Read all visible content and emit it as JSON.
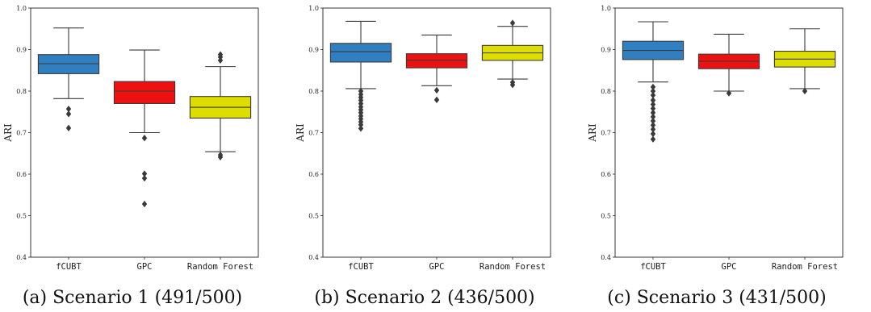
{
  "colors": {
    "fcubt": "#2f7fc1",
    "gpc": "#ee1111",
    "rf": "#dddd00"
  },
  "chart_data": [
    {
      "type": "box",
      "caption": "(a) Scenario 1 (491/500)",
      "ylabel": "ARI",
      "ylim": [
        0.4,
        1.0
      ],
      "yticks": [
        "0.4",
        "0.5",
        "0.6",
        "0.7",
        "0.8",
        "0.9",
        "1.0"
      ],
      "categories": [
        "fCUBT",
        "GPC",
        "Random Forest"
      ],
      "boxes": [
        {
          "name": "fCUBT",
          "whislo": 0.782,
          "q1": 0.842,
          "med": 0.866,
          "q3": 0.888,
          "whishi": 0.952,
          "fliers": [
            0.757,
            0.745,
            0.711
          ]
        },
        {
          "name": "GPC",
          "whislo": 0.7,
          "q1": 0.77,
          "med": 0.8,
          "q3": 0.823,
          "whishi": 0.899,
          "fliers": [
            0.687,
            0.601,
            0.59,
            0.528
          ]
        },
        {
          "name": "Random Forest",
          "whislo": 0.654,
          "q1": 0.735,
          "med": 0.761,
          "q3": 0.787,
          "whishi": 0.859,
          "fliers": [
            0.888,
            0.882,
            0.874,
            0.646,
            0.641
          ]
        }
      ]
    },
    {
      "type": "box",
      "caption": "(b) Scenario 2 (436/500)",
      "ylabel": "ARI",
      "ylim": [
        0.4,
        1.0
      ],
      "yticks": [
        "0.4",
        "0.5",
        "0.6",
        "0.7",
        "0.8",
        "0.9",
        "1.0"
      ],
      "categories": [
        "fCUBT",
        "GPC",
        "Random Forest"
      ],
      "boxes": [
        {
          "name": "fCUBT",
          "whislo": 0.806,
          "q1": 0.87,
          "med": 0.895,
          "q3": 0.915,
          "whishi": 0.968,
          "fliers": [
            0.8,
            0.792,
            0.785,
            0.778,
            0.77,
            0.762,
            0.755,
            0.748,
            0.74,
            0.733,
            0.726,
            0.719,
            0.71
          ]
        },
        {
          "name": "GPC",
          "whislo": 0.813,
          "q1": 0.856,
          "med": 0.874,
          "q3": 0.89,
          "whishi": 0.935,
          "fliers": [
            0.802,
            0.779
          ]
        },
        {
          "name": "Random Forest",
          "whislo": 0.829,
          "q1": 0.874,
          "med": 0.892,
          "q3": 0.91,
          "whishi": 0.956,
          "fliers": [
            0.964,
            0.821,
            0.815
          ]
        }
      ]
    },
    {
      "type": "box",
      "caption": "(c) Scenario 3 (431/500)",
      "ylabel": "ARI",
      "ylim": [
        0.4,
        1.0
      ],
      "yticks": [
        "0.4",
        "0.5",
        "0.6",
        "0.7",
        "0.8",
        "0.9",
        "1.0"
      ],
      "categories": [
        "fCUBT",
        "GPC",
        "Random Forest"
      ],
      "boxes": [
        {
          "name": "fCUBT",
          "whislo": 0.822,
          "q1": 0.876,
          "med": 0.898,
          "q3": 0.92,
          "whishi": 0.967,
          "fliers": [
            0.81,
            0.8,
            0.79,
            0.778,
            0.768,
            0.758,
            0.748,
            0.738,
            0.728,
            0.718,
            0.708,
            0.697,
            0.684
          ]
        },
        {
          "name": "GPC",
          "whislo": 0.8,
          "q1": 0.854,
          "med": 0.872,
          "q3": 0.889,
          "whishi": 0.937,
          "fliers": [
            0.795
          ]
        },
        {
          "name": "Random Forest",
          "whislo": 0.806,
          "q1": 0.858,
          "med": 0.877,
          "q3": 0.896,
          "whishi": 0.95,
          "fliers": [
            0.8
          ]
        }
      ]
    }
  ]
}
